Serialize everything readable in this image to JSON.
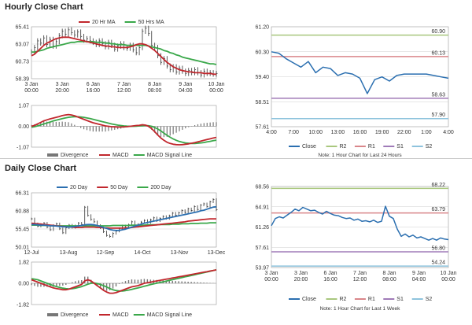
{
  "sections": {
    "hourly_title": "Hourly Close Chart",
    "daily_title": "Daily Close Chart"
  },
  "colors": {
    "close_line": "#2b6fb0",
    "ma20": "#c1272d",
    "ma50": "#3aa84a",
    "ma200": "#3aa84a",
    "price_bar": "#333333",
    "macd": "#c1272d",
    "signal": "#3aa84a",
    "divergence": "#777777",
    "r2": "#a9c77e",
    "r1": "#d9868a",
    "s1": "#a07bb8",
    "s2": "#8ec3dd",
    "grid": "#cfcfcf"
  },
  "chart_data": [
    {
      "id": "hourly-price",
      "type": "line",
      "title": "",
      "legend": {
        "placement": "top-center",
        "entries": [
          "20 Hr MA",
          "50 Hrs MA"
        ]
      },
      "ylim": [
        58.39,
        65.41
      ],
      "yticks": [
        "65.41",
        "63.07",
        "60.73",
        "58.39"
      ],
      "xticks": [
        {
          "line1": "3 Jan",
          "line2": "00:00"
        },
        {
          "line1": "3 Jan",
          "line2": "20:00"
        },
        {
          "line1": "6 Jan",
          "line2": "16:00"
        },
        {
          "line1": "7 Jan",
          "line2": "12:00"
        },
        {
          "line1": "8 Jan",
          "line2": "08:00"
        },
        {
          "line1": "9 Jan",
          "line2": "04:00"
        },
        {
          "line1": "10 Jan",
          "line2": "00:00"
        }
      ],
      "n": 61,
      "price": [
        62.0,
        62.6,
        63.5,
        63.2,
        63.9,
        63.0,
        63.7,
        62.8,
        63.4,
        64.2,
        64.8,
        64.4,
        65.0,
        64.6,
        64.3,
        64.7,
        64.1,
        63.6,
        63.8,
        63.5,
        63.3,
        63.0,
        63.5,
        63.1,
        62.7,
        63.3,
        62.9,
        62.4,
        62.8,
        63.1,
        62.6,
        62.5,
        62.9,
        62.3,
        61.9,
        62.6,
        64.8,
        65.2,
        64.5,
        62.9,
        62.6,
        61.5,
        60.6,
        61.1,
        60.1,
        59.6,
        60.0,
        59.3,
        59.8,
        59.4,
        59.1,
        59.5,
        59.2,
        59.6,
        59.2,
        58.9,
        59.4,
        59.1,
        59.2,
        59.0,
        59.1
      ],
      "series": [
        {
          "name": "20 Hr MA",
          "values": [
            61.5,
            61.7,
            62.1,
            62.5,
            62.9,
            63.2,
            63.4,
            63.6,
            63.8,
            63.9,
            64.0,
            64.0,
            64.0,
            63.9,
            63.8,
            63.7,
            63.6,
            63.5,
            63.4,
            63.3,
            63.2,
            63.1,
            63.0,
            62.9,
            62.8,
            62.8,
            62.7,
            62.7,
            62.6,
            62.6,
            62.6,
            62.6,
            62.7,
            62.8,
            63.0,
            63.1,
            63.1,
            63.0,
            62.8,
            62.5,
            62.2,
            61.8,
            61.4,
            61.0,
            60.6,
            60.3,
            60.0,
            59.8,
            59.6,
            59.5,
            59.4,
            59.3,
            59.3,
            59.2,
            59.2,
            59.2,
            59.1,
            59.1,
            59.1,
            59.0,
            59.0
          ]
        },
        {
          "name": "50 Hrs MA",
          "values": [
            62.0,
            62.0,
            62.1,
            62.2,
            62.3,
            62.5,
            62.6,
            62.7,
            62.8,
            62.9,
            63.0,
            63.1,
            63.2,
            63.3,
            63.3,
            63.4,
            63.4,
            63.4,
            63.4,
            63.4,
            63.4,
            63.3,
            63.3,
            63.3,
            63.2,
            63.2,
            63.1,
            63.1,
            63.0,
            63.0,
            63.0,
            62.9,
            62.9,
            62.9,
            62.9,
            62.9,
            62.9,
            62.9,
            62.8,
            62.7,
            62.6,
            62.5,
            62.4,
            62.2,
            62.1,
            61.9,
            61.8,
            61.6,
            61.5,
            61.3,
            61.2,
            61.1,
            61.0,
            60.9,
            60.8,
            60.7,
            60.6,
            60.5,
            60.4,
            60.4,
            60.3
          ]
        }
      ]
    },
    {
      "id": "hourly-macd",
      "type": "line",
      "title": "",
      "ylim": [
        -1.07,
        1.07
      ],
      "yticks": [
        "1.07",
        "0.00",
        "-1.07"
      ],
      "legend": {
        "placement": "bottom",
        "entries": [
          "Divergence",
          "MACD",
          "MACD Signal Line"
        ]
      },
      "n": 61,
      "series": [
        {
          "name": "MACD",
          "values": [
            0.0,
            0.05,
            0.12,
            0.2,
            0.28,
            0.33,
            0.38,
            0.42,
            0.46,
            0.5,
            0.55,
            0.58,
            0.6,
            0.58,
            0.54,
            0.48,
            0.42,
            0.36,
            0.3,
            0.24,
            0.18,
            0.14,
            0.1,
            0.06,
            0.02,
            0.0,
            -0.02,
            -0.03,
            -0.04,
            -0.04,
            -0.03,
            -0.02,
            0.0,
            0.02,
            0.04,
            0.05,
            0.08,
            0.06,
            0.0,
            -0.12,
            -0.28,
            -0.45,
            -0.6,
            -0.72,
            -0.82,
            -0.88,
            -0.92,
            -0.94,
            -0.95,
            -0.94,
            -0.92,
            -0.9,
            -0.87,
            -0.84,
            -0.8,
            -0.76,
            -0.72,
            -0.68,
            -0.64,
            -0.6,
            -0.57
          ]
        },
        {
          "name": "MACD Signal Line",
          "values": [
            -0.05,
            -0.02,
            0.02,
            0.07,
            0.12,
            0.17,
            0.22,
            0.27,
            0.31,
            0.35,
            0.39,
            0.43,
            0.46,
            0.48,
            0.49,
            0.49,
            0.48,
            0.46,
            0.43,
            0.4,
            0.36,
            0.32,
            0.28,
            0.24,
            0.2,
            0.16,
            0.12,
            0.09,
            0.06,
            0.04,
            0.02,
            0.01,
            0.0,
            0.0,
            0.01,
            0.02,
            0.03,
            0.04,
            0.03,
            0.0,
            -0.06,
            -0.14,
            -0.24,
            -0.35,
            -0.46,
            -0.56,
            -0.65,
            -0.72,
            -0.78,
            -0.82,
            -0.85,
            -0.87,
            -0.88,
            -0.88,
            -0.87,
            -0.85,
            -0.83,
            -0.8,
            -0.77,
            -0.74,
            -0.71
          ]
        }
      ]
    },
    {
      "id": "hourly-pivot",
      "type": "line",
      "title": "",
      "ylim": [
        57.61,
        61.2
      ],
      "yticks": [
        "61.20",
        "60.30",
        "59.40",
        "58.51",
        "57.61"
      ],
      "xticks": [
        "4:00",
        "7:00",
        "10:00",
        "13:00",
        "16:00",
        "19:00",
        "22:00",
        "1:00",
        "4:00"
      ],
      "levels": [
        {
          "name": "R2",
          "value": 60.9,
          "label": "60.90"
        },
        {
          "name": "R1",
          "value": 60.13,
          "label": "60.13"
        },
        {
          "name": "S1",
          "value": 58.63,
          "label": "58.63"
        },
        {
          "name": "S2",
          "value": 57.9,
          "label": "57.90"
        }
      ],
      "legend": {
        "placement": "bottom",
        "entries": [
          "Close",
          "R2",
          "R1",
          "S1",
          "S2"
        ]
      },
      "note": "Note: 1 Hour Chart for Last 24 Hours",
      "close": [
        60.3,
        60.25,
        60.05,
        59.9,
        59.75,
        59.95,
        59.55,
        59.75,
        59.7,
        59.45,
        59.55,
        59.5,
        59.35,
        58.8,
        59.3,
        59.4,
        59.25,
        59.45,
        59.5,
        59.5,
        59.5,
        59.5,
        59.45,
        59.4,
        59.35
      ]
    },
    {
      "id": "daily-price",
      "type": "line",
      "title": "",
      "legend": {
        "placement": "top-center",
        "entries": [
          "20 Day",
          "50 Day",
          "200 Day"
        ]
      },
      "ylim": [
        50.01,
        66.31
      ],
      "yticks": [
        "66.31",
        "60.88",
        "55.45",
        "50.01"
      ],
      "xticks": [
        "12-Jul",
        "13-Aug",
        "12-Sep",
        "14-Oct",
        "13-Nov",
        "13-Dec"
      ],
      "n": 60,
      "price": [
        58.5,
        57.0,
        56.3,
        56.8,
        57.2,
        56.0,
        55.2,
        56.5,
        57.0,
        55.5,
        54.3,
        55.8,
        56.6,
        55.9,
        56.4,
        57.2,
        56.8,
        62.0,
        59.5,
        58.3,
        57.6,
        56.5,
        55.8,
        54.6,
        53.5,
        53.2,
        54.1,
        54.8,
        55.6,
        56.4,
        55.9,
        56.7,
        57.6,
        56.2,
        56.8,
        57.5,
        58.0,
        57.4,
        58.2,
        58.8,
        57.9,
        58.6,
        59.2,
        58.6,
        59.4,
        60.2,
        59.6,
        60.3,
        61.0,
        60.4,
        61.5,
        61.0,
        62.2,
        61.3,
        62.6,
        63.0,
        62.2,
        63.6,
        64.3,
        61.2
      ],
      "series": [
        {
          "name": "20 Day",
          "values": [
            56.8,
            56.8,
            56.7,
            56.6,
            56.6,
            56.5,
            56.4,
            56.4,
            56.3,
            56.2,
            56.1,
            56.1,
            56.0,
            56.1,
            56.2,
            56.4,
            56.5,
            56.7,
            56.8,
            56.8,
            56.7,
            56.5,
            56.2,
            55.9,
            55.6,
            55.3,
            55.1,
            55.0,
            55.0,
            55.2,
            55.4,
            55.7,
            56.0,
            56.3,
            56.6,
            56.9,
            57.2,
            57.4,
            57.6,
            57.8,
            58.0,
            58.2,
            58.4,
            58.6,
            58.8,
            59.0,
            59.2,
            59.4,
            59.6,
            59.8,
            60.0,
            60.2,
            60.4,
            60.6,
            60.9,
            61.1,
            61.4,
            61.7,
            62.0,
            62.1
          ]
        },
        {
          "name": "50 Day",
          "values": [
            57.2,
            57.1,
            57.0,
            56.9,
            56.8,
            56.7,
            56.6,
            56.5,
            56.4,
            56.3,
            56.2,
            56.1,
            56.0,
            56.0,
            55.9,
            55.9,
            55.9,
            56.0,
            56.0,
            56.0,
            56.0,
            55.9,
            55.9,
            55.8,
            55.8,
            55.7,
            55.7,
            55.7,
            55.7,
            55.7,
            55.8,
            55.8,
            55.9,
            56.0,
            56.1,
            56.2,
            56.3,
            56.4,
            56.5,
            56.6,
            56.7,
            56.8,
            56.9,
            57.0,
            57.1,
            57.2,
            57.3,
            57.4,
            57.5,
            57.6,
            57.8,
            57.9,
            58.0,
            58.1,
            58.2,
            58.3,
            58.4,
            58.5,
            58.5,
            58.5
          ]
        },
        {
          "name": "200 Day",
          "values": [
            56.6,
            56.6,
            56.6,
            56.5,
            56.5,
            56.5,
            56.5,
            56.4,
            56.4,
            56.4,
            56.4,
            56.4,
            56.4,
            56.4,
            56.4,
            56.4,
            56.4,
            56.4,
            56.4,
            56.4,
            56.4,
            56.4,
            56.4,
            56.4,
            56.4,
            56.4,
            56.5,
            56.5,
            56.5,
            56.5,
            56.5,
            56.5,
            56.6,
            56.6,
            56.6,
            56.6,
            56.6,
            56.7,
            56.7,
            56.7,
            56.7,
            56.8,
            56.8,
            56.8,
            56.8,
            56.9,
            56.9,
            56.9,
            57.0,
            57.0,
            57.0,
            57.1,
            57.1,
            57.1,
            57.2,
            57.2,
            57.2,
            57.3,
            57.3,
            57.3
          ]
        }
      ]
    },
    {
      "id": "daily-macd",
      "type": "line",
      "title": "",
      "ylim": [
        -1.82,
        1.82
      ],
      "yticks": [
        "1.82",
        "0.00",
        "-1.82"
      ],
      "legend": {
        "placement": "bottom",
        "entries": [
          "Divergence",
          "MACD",
          "MACD Signal Line"
        ]
      },
      "n": 60,
      "series": [
        {
          "name": "MACD",
          "values": [
            0.3,
            0.2,
            0.1,
            0.0,
            -0.1,
            -0.2,
            -0.3,
            -0.4,
            -0.45,
            -0.5,
            -0.55,
            -0.55,
            -0.5,
            -0.4,
            -0.3,
            -0.2,
            -0.1,
            0.2,
            0.3,
            0.2,
            0.0,
            -0.2,
            -0.4,
            -0.6,
            -0.75,
            -0.85,
            -0.85,
            -0.8,
            -0.7,
            -0.6,
            -0.5,
            -0.4,
            -0.3,
            -0.25,
            -0.2,
            -0.1,
            0.0,
            0.05,
            0.1,
            0.15,
            0.2,
            0.25,
            0.3,
            0.35,
            0.4,
            0.45,
            0.5,
            0.55,
            0.6,
            0.65,
            0.7,
            0.75,
            0.8,
            0.85,
            0.9,
            0.95,
            1.0,
            1.05,
            1.1,
            1.15
          ]
        },
        {
          "name": "MACD Signal Line",
          "values": [
            0.4,
            0.35,
            0.3,
            0.2,
            0.1,
            0.0,
            -0.1,
            -0.2,
            -0.28,
            -0.35,
            -0.42,
            -0.46,
            -0.48,
            -0.46,
            -0.42,
            -0.36,
            -0.28,
            -0.18,
            -0.08,
            0.0,
            0.02,
            -0.02,
            -0.1,
            -0.2,
            -0.32,
            -0.45,
            -0.55,
            -0.62,
            -0.66,
            -0.66,
            -0.63,
            -0.58,
            -0.52,
            -0.46,
            -0.4,
            -0.33,
            -0.25,
            -0.18,
            -0.11,
            -0.05,
            0.01,
            0.07,
            0.13,
            0.19,
            0.25,
            0.31,
            0.37,
            0.43,
            0.49,
            0.55,
            0.61,
            0.67,
            0.73,
            0.79,
            0.85,
            0.91,
            0.97,
            1.03,
            1.09,
            1.15
          ]
        }
      ]
    },
    {
      "id": "daily-pivot",
      "type": "line",
      "title": "",
      "ylim": [
        53.97,
        68.56
      ],
      "yticks": [
        "68.56",
        "64.91",
        "61.26",
        "57.61",
        "53.97"
      ],
      "xticks": [
        {
          "line1": "3 Jan",
          "line2": "00:00"
        },
        {
          "line1": "3 Jan",
          "line2": "20:00"
        },
        {
          "line1": "6 Jan",
          "line2": "16:00"
        },
        {
          "line1": "7 Jan",
          "line2": "12:00"
        },
        {
          "line1": "8 Jan",
          "line2": "08:00"
        },
        {
          "line1": "9 Jan",
          "line2": "04:00"
        },
        {
          "line1": "10 Jan",
          "line2": "00:00"
        }
      ],
      "levels": [
        {
          "name": "R2",
          "value": 68.22,
          "label": "68.22"
        },
        {
          "name": "R1",
          "value": 63.79,
          "label": "63.79"
        },
        {
          "name": "S1",
          "value": 56.8,
          "label": "56.80"
        },
        {
          "name": "S2",
          "value": 54.24,
          "label": "54.24"
        }
      ],
      "legend": {
        "placement": "bottom",
        "entries": [
          "Close",
          "R2",
          "R1",
          "S1",
          "S2"
        ]
      },
      "note": "Note: 1 Hour Chart for Last 1 Week",
      "close": [
        61.5,
        62.8,
        63.1,
        62.9,
        63.4,
        63.9,
        64.5,
        64.2,
        64.8,
        64.5,
        64.2,
        64.3,
        63.9,
        63.6,
        64.1,
        63.7,
        63.4,
        63.3,
        63.0,
        62.8,
        62.9,
        62.5,
        62.7,
        62.3,
        62.4,
        62.2,
        62.5,
        62.1,
        62.3,
        65.0,
        63.2,
        62.8,
        60.9,
        59.6,
        60.0,
        59.5,
        59.8,
        59.3,
        59.5,
        59.2,
        58.9,
        59.2,
        58.9,
        59.3,
        59.1,
        59.0
      ]
    }
  ]
}
